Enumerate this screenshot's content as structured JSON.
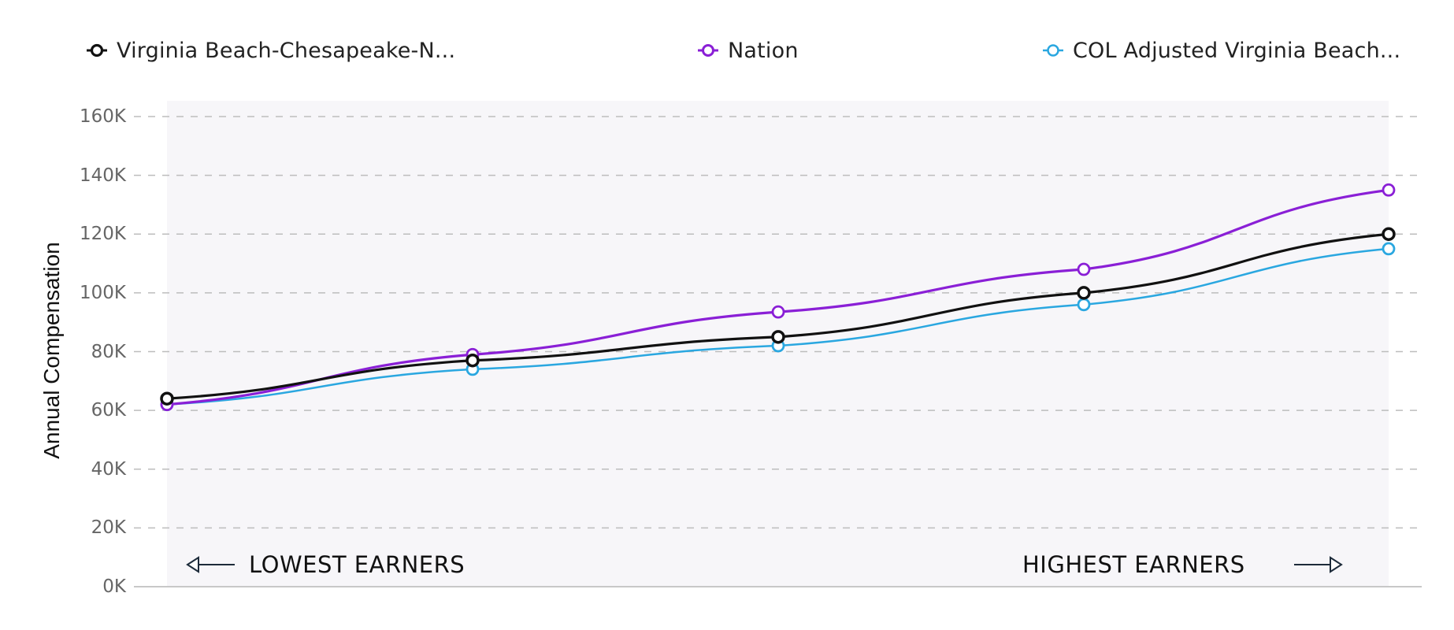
{
  "legend": {
    "items": [
      {
        "label": "Virginia Beach-Chesapeake-N...",
        "color": "#111111",
        "icon": "circle-marker-icon"
      },
      {
        "label": "Nation",
        "color": "#8a1fd6",
        "icon": "circle-marker-icon"
      },
      {
        "label": "COL Adjusted Virginia Beach...",
        "color": "#2aa7e0",
        "icon": "circle-marker-icon"
      }
    ]
  },
  "axes": {
    "ylabel": "Annual Compensation",
    "yticks": [
      "0K",
      "20K",
      "40K",
      "60K",
      "80K",
      "100K",
      "120K",
      "140K",
      "160K"
    ]
  },
  "annotations": {
    "left": "LOWEST EARNERS",
    "right": "HIGHEST EARNERS",
    "left_icon": "arrow-left-icon",
    "right_icon": "arrow-right-icon"
  },
  "chart_data": {
    "type": "line",
    "title": "",
    "xlabel": "",
    "ylabel": "Annual Compensation",
    "ylim": [
      0,
      160000
    ],
    "yticks": [
      0,
      20000,
      40000,
      60000,
      80000,
      100000,
      120000,
      140000,
      160000
    ],
    "ytick_labels": [
      "0K",
      "20K",
      "40K",
      "60K",
      "80K",
      "100K",
      "120K",
      "140K",
      "160K"
    ],
    "grid": "horizontal dashed",
    "legend_position": "top",
    "x": [
      1,
      2,
      3,
      4,
      5
    ],
    "x_annotations": {
      "left": "LOWEST EARNERS",
      "right": "HIGHEST EARNERS"
    },
    "series": [
      {
        "name": "Virginia Beach-Chesapeake-N...",
        "color": "#111111",
        "values": [
          64000,
          77000,
          85000,
          100000,
          120000
        ]
      },
      {
        "name": "Nation",
        "color": "#8a1fd6",
        "values": [
          62000,
          79000,
          93500,
          108000,
          135000
        ]
      },
      {
        "name": "COL Adjusted Virginia Beach...",
        "color": "#2aa7e0",
        "values": [
          62000,
          74000,
          82000,
          96000,
          115000
        ]
      }
    ]
  }
}
